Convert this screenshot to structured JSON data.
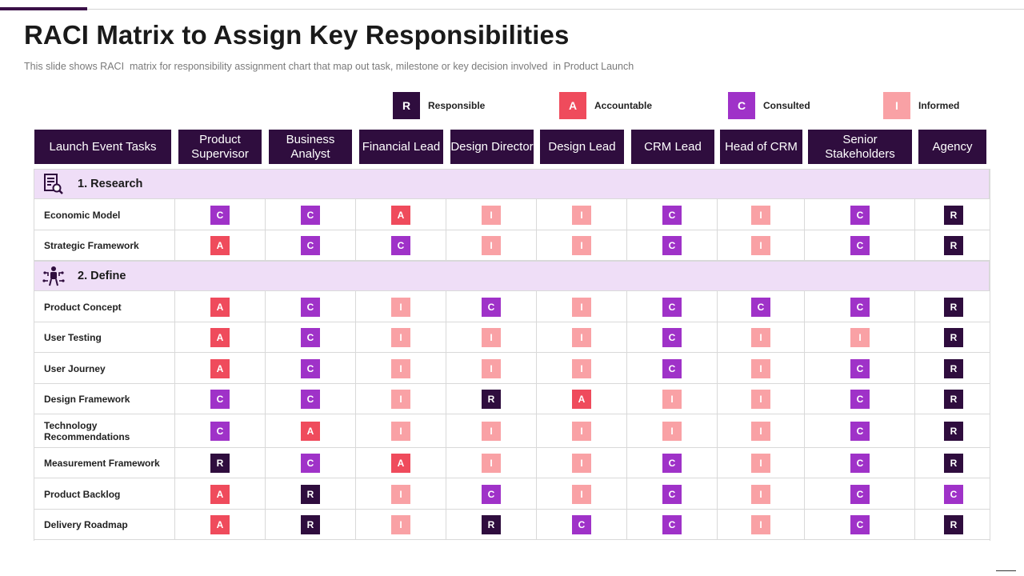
{
  "title": "RACI Matrix to Assign Key Responsibilities",
  "subtitle": "This slide shows RACI  matrix for responsibility assignment chart that map out task, milestone or key decision involved  in Product Launch",
  "colors": {
    "R": "#2f0d3e",
    "A": "#ef4b5c",
    "C": "#9f32c8",
    "I": "#f9a1a5",
    "section_bg": "#efdef7"
  },
  "legend": [
    {
      "code": "R",
      "label": "Responsible"
    },
    {
      "code": "A",
      "label": "Accountable"
    },
    {
      "code": "C",
      "label": "Consulted"
    },
    {
      "code": "I",
      "label": "Informed"
    }
  ],
  "columns": [
    "Launch Event Tasks",
    "Product Supervisor",
    "Business Analyst",
    "Financial Lead",
    "Design Director",
    "Design Lead",
    "CRM Lead",
    "Head of CRM",
    "Senior Stakeholders",
    "Agency"
  ],
  "sections": [
    {
      "label": "1. Research",
      "icon": "research-document-icon",
      "rows": [
        {
          "task": "Economic Model",
          "values": [
            "C",
            "C",
            "A",
            "I",
            "I",
            "C",
            "I",
            "C",
            "R"
          ]
        },
        {
          "task": "Strategic Framework",
          "values": [
            "A",
            "C",
            "C",
            "I",
            "I",
            "C",
            "I",
            "C",
            "R"
          ]
        }
      ]
    },
    {
      "label": "2. Define",
      "icon": "define-strategy-icon",
      "rows": [
        {
          "task": "Product Concept",
          "values": [
            "A",
            "C",
            "I",
            "C",
            "I",
            "C",
            "C",
            "C",
            "R"
          ]
        },
        {
          "task": "User Testing",
          "values": [
            "A",
            "C",
            "I",
            "I",
            "I",
            "C",
            "I",
            "I",
            "R"
          ]
        },
        {
          "task": "User Journey",
          "values": [
            "A",
            "C",
            "I",
            "I",
            "I",
            "C",
            "I",
            "C",
            "R"
          ]
        },
        {
          "task": "Design Framework",
          "values": [
            "C",
            "C",
            "I",
            "R",
            "A",
            "I",
            "I",
            "C",
            "R"
          ]
        },
        {
          "task": "Technology Recommendations",
          "values": [
            "C",
            "A",
            "I",
            "I",
            "I",
            "I",
            "I",
            "C",
            "R"
          ]
        },
        {
          "task": "Measurement Framework",
          "values": [
            "R",
            "C",
            "A",
            "I",
            "I",
            "C",
            "I",
            "C",
            "R"
          ]
        },
        {
          "task": "Product Backlog",
          "values": [
            "A",
            "R",
            "I",
            "C",
            "I",
            "C",
            "I",
            "C",
            "C"
          ]
        },
        {
          "task": "Delivery Roadmap",
          "values": [
            "A",
            "R",
            "I",
            "R",
            "C",
            "C",
            "I",
            "C",
            "R"
          ]
        }
      ]
    }
  ]
}
